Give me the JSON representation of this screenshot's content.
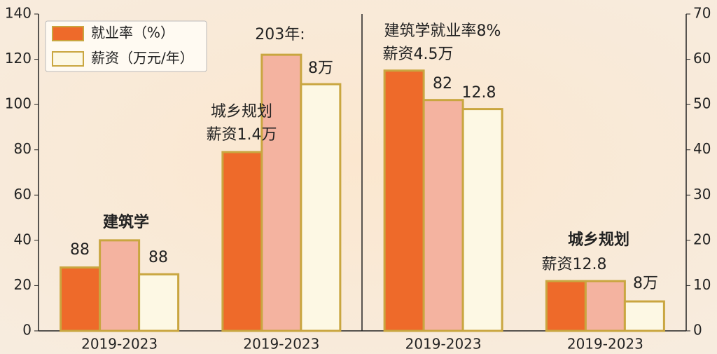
{
  "chart_data": {
    "type": "bar",
    "categories": [
      "2019-2023",
      "2019-2023",
      "2019-2023",
      "2019-2023"
    ],
    "series": [
      {
        "name": "就业率（%）",
        "color": "#ee6a2a",
        "values": [
          28,
          79,
          115,
          22
        ]
      },
      {
        "color": "#f4b3a0",
        "values": [
          40,
          122,
          102,
          22
        ]
      },
      {
        "name": "薪资（万元/年）",
        "color": "#fdf8e4",
        "values": [
          25,
          109,
          98,
          13
        ]
      }
    ],
    "ylim": [
      0,
      140
    ],
    "yticks": [
      0,
      20,
      40,
      60,
      80,
      100,
      120,
      140
    ],
    "y2lim": [
      0,
      70
    ],
    "y2ticks": [
      0,
      10,
      20,
      30,
      40,
      50,
      60,
      70
    ],
    "legend": "upper left",
    "annotations": [
      {
        "text": "88"
      },
      {
        "text": "建筑学",
        "bold": true
      },
      {
        "text": "88"
      },
      {
        "text": "城乡规划"
      },
      {
        "text": "薪资1.4万"
      },
      {
        "text": "203年:"
      },
      {
        "text": "8万"
      },
      {
        "text": "建筑学就业率8%"
      },
      {
        "text": "薪资4.5万"
      },
      {
        "text": "82"
      },
      {
        "text": "12.8"
      },
      {
        "text": "城乡规划",
        "bold": true
      },
      {
        "text": "薪资12.8"
      },
      {
        "text": "8万"
      }
    ]
  }
}
